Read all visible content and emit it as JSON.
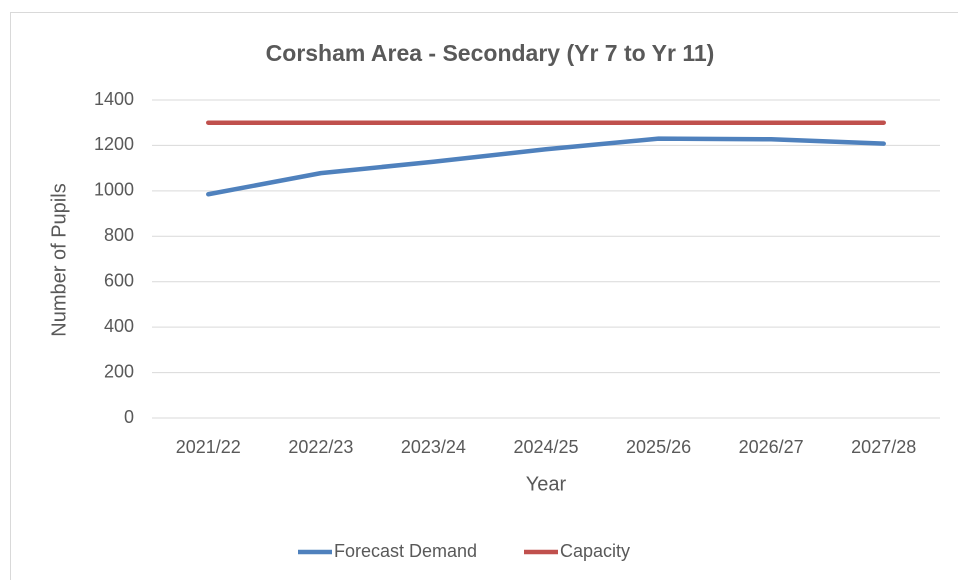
{
  "chart_data": {
    "type": "line",
    "title": "Corsham Area - Secondary (Yr 7 to Yr 11)",
    "x_label": "Year",
    "y_label": "Number of Pupils",
    "categories": [
      "2021/22",
      "2022/23",
      "2023/24",
      "2024/25",
      "2025/26",
      "2026/27",
      "2027/28"
    ],
    "series": [
      {
        "name": "Forecast Demand",
        "color": "#4f81bd",
        "values": [
          985,
          1078,
          1128,
          1183,
          1230,
          1227,
          1208
        ]
      },
      {
        "name": "Capacity",
        "color": "#c0504d",
        "values": [
          1300,
          1300,
          1300,
          1300,
          1300,
          1300,
          1300
        ]
      }
    ],
    "ylim": [
      0,
      1400
    ],
    "yticks": [
      0,
      200,
      400,
      600,
      800,
      1000,
      1200,
      1400
    ],
    "grid": true,
    "legend": "bottom"
  }
}
